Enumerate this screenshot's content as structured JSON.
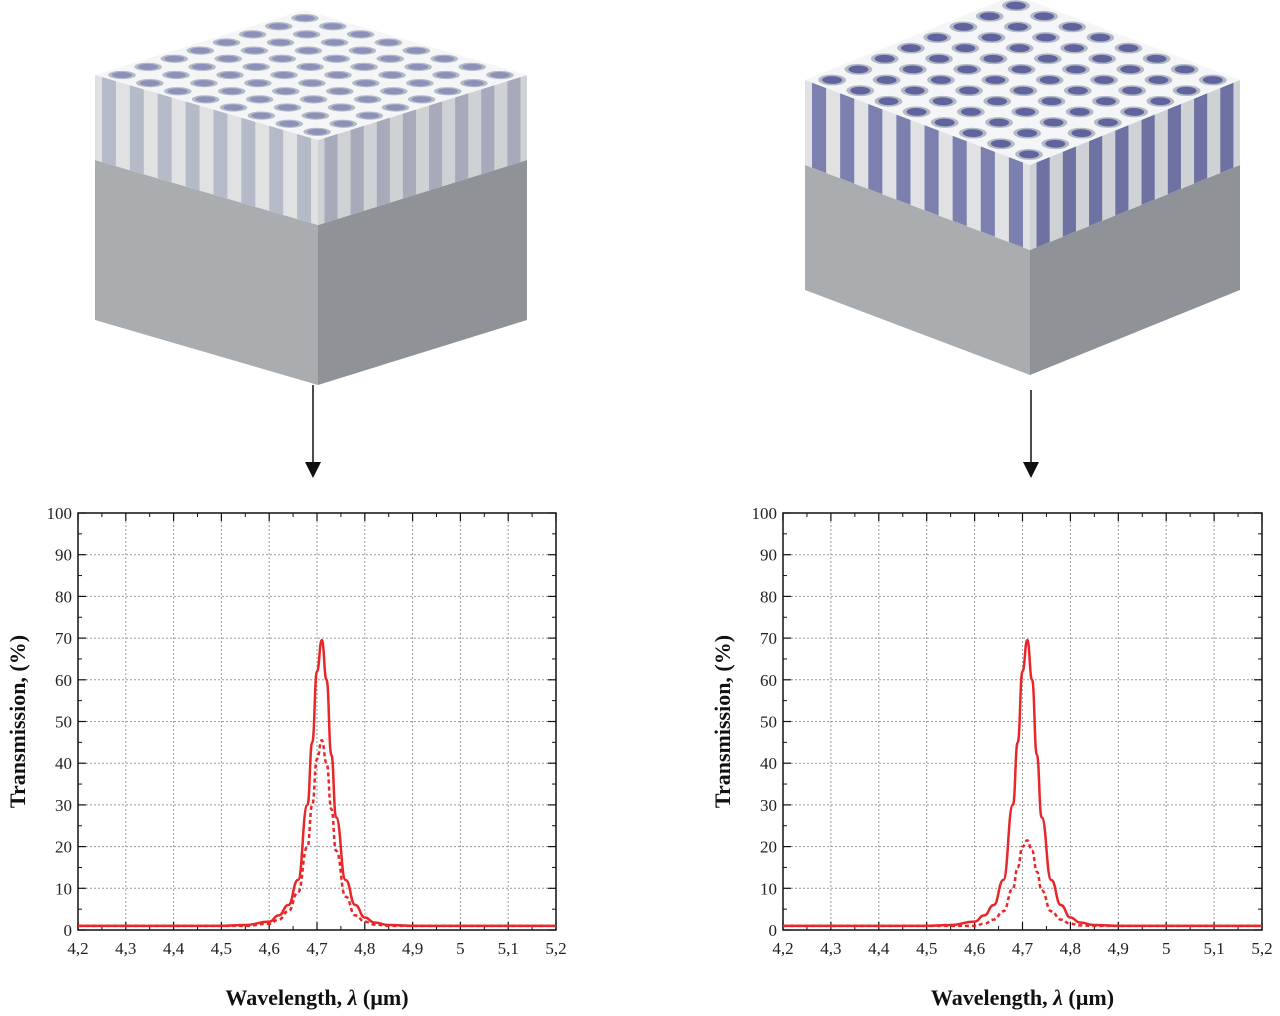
{
  "colors": {
    "curve": "#e8272a",
    "grid": "#9a9a9a",
    "structure_top": "#f4f5f6",
    "structure_side": "#c9cccf",
    "holes": "#4a4fa8"
  },
  "icons": {
    "arrow": "arrow-down-icon"
  },
  "chart_data": [
    {
      "type": "line",
      "xlabel_prefix": "Wavelength, ",
      "xlabel_symbol": "λ",
      "xlabel_suffix": " (µm)",
      "ylabel": "Transmission, (%)",
      "xlim": [
        4.2,
        5.2
      ],
      "ylim": [
        0,
        100
      ],
      "grid": true,
      "xticks": [
        "4,2",
        "4,3",
        "4,4",
        "4,5",
        "4,6",
        "4,7",
        "4,8",
        "4,9",
        "5",
        "5,1",
        "5,2"
      ],
      "yticks": [
        "0",
        "10",
        "20",
        "30",
        "40",
        "50",
        "60",
        "70",
        "80",
        "90",
        "100"
      ],
      "series": [
        {
          "style": "solid",
          "x": [
            4.2,
            4.5,
            4.55,
            4.6,
            4.62,
            4.64,
            4.66,
            4.68,
            4.69,
            4.7,
            4.71,
            4.72,
            4.73,
            4.74,
            4.76,
            4.78,
            4.8,
            4.82,
            4.85,
            4.9,
            5.2
          ],
          "y": [
            1,
            1,
            1.2,
            2,
            3.5,
            6,
            12,
            30,
            45,
            62,
            69.5,
            60,
            42,
            27,
            12,
            6,
            3,
            1.8,
            1.2,
            1,
            1
          ]
        },
        {
          "style": "dashed",
          "x": [
            4.2,
            4.5,
            4.55,
            4.6,
            4.62,
            4.64,
            4.66,
            4.68,
            4.69,
            4.7,
            4.71,
            4.72,
            4.73,
            4.74,
            4.76,
            4.78,
            4.8,
            4.82,
            4.85,
            4.9,
            5.2
          ],
          "y": [
            1,
            1,
            1,
            1.5,
            2.5,
            4.5,
            9,
            20,
            30,
            41,
            45.5,
            40,
            29,
            19,
            8,
            3.5,
            2,
            1.3,
            1,
            1,
            1
          ]
        }
      ]
    },
    {
      "type": "line",
      "xlabel_prefix": "Wavelength, ",
      "xlabel_symbol": "λ",
      "xlabel_suffix": " (µm)",
      "ylabel": "Transmission, (%)",
      "xlim": [
        4.2,
        5.2
      ],
      "ylim": [
        0,
        100
      ],
      "grid": true,
      "xticks": [
        "4,2",
        "4,3",
        "4,4",
        "4,5",
        "4,6",
        "4,7",
        "4,8",
        "4,9",
        "5",
        "5,1",
        "5,2"
      ],
      "yticks": [
        "0",
        "10",
        "20",
        "30",
        "40",
        "50",
        "60",
        "70",
        "80",
        "90",
        "100"
      ],
      "series": [
        {
          "style": "solid",
          "x": [
            4.2,
            4.5,
            4.55,
            4.6,
            4.62,
            4.64,
            4.66,
            4.68,
            4.69,
            4.7,
            4.71,
            4.72,
            4.73,
            4.74,
            4.76,
            4.78,
            4.8,
            4.82,
            4.85,
            4.9,
            5.2
          ],
          "y": [
            1,
            1,
            1.2,
            2,
            3.5,
            6,
            12,
            30,
            45,
            62,
            69.5,
            60,
            42,
            27,
            12,
            6,
            3,
            1.8,
            1.2,
            1,
            1
          ]
        },
        {
          "style": "dashed",
          "x": [
            4.2,
            4.5,
            4.55,
            4.6,
            4.62,
            4.64,
            4.66,
            4.68,
            4.69,
            4.7,
            4.71,
            4.72,
            4.73,
            4.74,
            4.76,
            4.78,
            4.8,
            4.82,
            4.85,
            4.9,
            5.2
          ],
          "y": [
            1,
            1,
            1,
            1,
            1.5,
            2.5,
            4.5,
            10,
            15,
            20,
            21.5,
            19,
            14,
            9.5,
            4.5,
            2.5,
            1.5,
            1.1,
            1,
            1,
            1
          ]
        }
      ]
    }
  ]
}
